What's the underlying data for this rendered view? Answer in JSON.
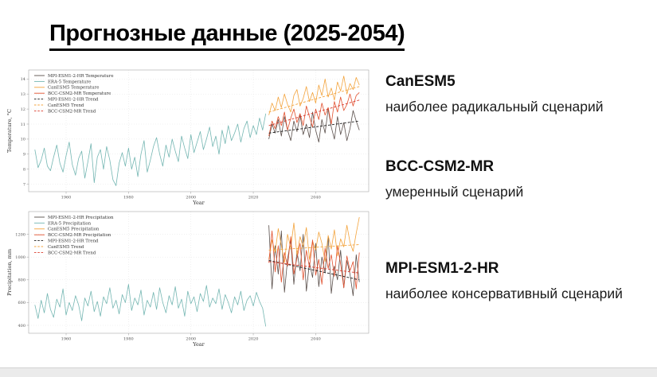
{
  "slide": {
    "title": "Прогнозные данные (2025-2054)",
    "models": [
      {
        "name": "CanESM5",
        "description": "наиболее радикальный сценарий"
      },
      {
        "name": "BCC-CSM2-MR",
        "description": "умеренный сценарий"
      },
      {
        "name": "MPI-ESM1-2-HR",
        "description": "наиболее консервативный сценарий"
      }
    ]
  },
  "colors": {
    "era5": "#74b6b2",
    "canesm5": "#f3a33c",
    "bcc_csm2_mr": "#e2512f",
    "mpi_esm1_2_hr": "#5a4f4b",
    "mpi_trend": "#1a1a1a",
    "canesm5_trend": "#f3a33c",
    "bcc_trend": "#d93a2b",
    "grid": "#e3e3e3",
    "frame": "#a8a8a8",
    "tick_text": "#555555"
  },
  "chart_data": [
    {
      "type": "line",
      "title": "",
      "xlabel": "Year",
      "ylabel": "Temperature, °C",
      "xlim": [
        1948,
        2057
      ],
      "ylim": [
        6.5,
        14.6
      ],
      "xticks": [
        1960,
        1980,
        2000,
        2020,
        2040
      ],
      "yticks": [
        7,
        8,
        9,
        10,
        11,
        12,
        13,
        14
      ],
      "grid": true,
      "legend_position": "upper-left",
      "series": [
        {
          "name": "MPI-ESM1-2-HR Temperature",
          "color": "#5a4f4b",
          "style": "solid",
          "x_start": 2025,
          "values": [
            10.0,
            11.0,
            10.4,
            11.3,
            10.2,
            11.5,
            10.6,
            9.9,
            11.2,
            10.5,
            11.6,
            10.3,
            11.0,
            10.1,
            11.8,
            10.6,
            9.8,
            11.3,
            10.4,
            12.0,
            10.8,
            10.0,
            11.5,
            10.3,
            11.1,
            9.9,
            10.7,
            11.9,
            11.2,
            10.6
          ]
        },
        {
          "name": "ERA-5 Temperature",
          "color": "#74b6b2",
          "style": "solid",
          "x_start": 1950,
          "values": [
            9.3,
            8.1,
            8.6,
            9.4,
            8.2,
            7.9,
            8.8,
            9.6,
            8.4,
            7.8,
            8.9,
            9.8,
            8.3,
            7.6,
            8.7,
            9.2,
            7.4,
            8.5,
            9.7,
            7.1,
            8.8,
            9.3,
            8.0,
            9.5,
            8.6,
            7.3,
            6.9,
            8.4,
            9.1,
            8.2,
            9.4,
            8.0,
            8.8,
            7.5,
            9.0,
            9.9,
            7.8,
            8.6,
            9.5,
            10.1,
            9.0,
            8.2,
            9.6,
            8.8,
            10.0,
            9.2,
            8.5,
            10.2,
            9.4,
            8.7,
            10.3,
            9.1,
            9.8,
            10.5,
            9.3,
            10.0,
            10.8,
            9.5,
            10.2,
            9.0,
            10.6,
            9.7,
            10.9,
            9.9,
            10.4,
            11.0,
            9.8,
            10.7,
            11.2,
            10.1,
            10.9,
            10.3,
            11.4,
            10.6,
            11.7
          ]
        },
        {
          "name": "CanESM5 Temperature",
          "color": "#f3a33c",
          "style": "solid",
          "x_start": 2025,
          "values": [
            11.6,
            12.4,
            11.9,
            12.8,
            12.1,
            13.0,
            12.3,
            11.8,
            12.9,
            13.3,
            12.2,
            12.7,
            13.5,
            12.5,
            13.1,
            12.4,
            13.6,
            12.9,
            14.0,
            12.8,
            13.4,
            12.6,
            13.8,
            13.2,
            14.2,
            13.0,
            13.7,
            13.3,
            14.1,
            13.6
          ]
        },
        {
          "name": "BCC-CSM2-MR Temperature",
          "color": "#e2512f",
          "style": "solid",
          "x_start": 2025,
          "values": [
            10.2,
            11.2,
            10.7,
            11.5,
            10.9,
            11.8,
            10.6,
            11.4,
            12.0,
            11.1,
            11.7,
            10.9,
            12.2,
            11.5,
            10.8,
            12.0,
            11.3,
            12.4,
            11.6,
            12.1,
            11.0,
            12.5,
            11.8,
            12.8,
            11.9,
            12.3,
            13.0,
            12.2,
            12.9,
            13.1
          ]
        },
        {
          "name": "MPI-ESM1-2-HR Trend",
          "color": "#1a1a1a",
          "style": "dashed",
          "x_start": 2025,
          "trend": [
            10.4,
            11.2
          ]
        },
        {
          "name": "CanESM5 Trend",
          "color": "#f3a33c",
          "style": "dashed",
          "x_start": 2025,
          "trend": [
            11.8,
            13.5
          ]
        },
        {
          "name": "BCC-CSM2-MR Trend",
          "color": "#d93a2b",
          "style": "dashed",
          "x_start": 2025,
          "trend": [
            10.9,
            12.6
          ]
        }
      ]
    },
    {
      "type": "line",
      "title": "",
      "xlabel": "Year",
      "ylabel": "Precipitation, mm",
      "xlim": [
        1948,
        2057
      ],
      "ylim": [
        330,
        1400
      ],
      "xticks": [
        1960,
        1980,
        2000,
        2020,
        2040
      ],
      "yticks": [
        400,
        600,
        800,
        1000,
        1200
      ],
      "grid": true,
      "legend_position": "upper-left",
      "series": [
        {
          "name": "MPI-ESM1-2-HR Precipitation",
          "color": "#5a4f4b",
          "style": "solid",
          "x_start": 2025,
          "values": [
            1280,
            720,
            1100,
            850,
            1230,
            690,
            980,
            1150,
            760,
            1050,
            880,
            1200,
            700,
            950,
            820,
            1120,
            740,
            1000,
            860,
            1180,
            680,
            920,
            800,
            1060,
            730,
            970,
            850,
            660,
            1020,
            780
          ]
        },
        {
          "name": "ERA-5 Precipitation",
          "color": "#74b6b2",
          "style": "solid",
          "x_start": 1950,
          "values": [
            580,
            460,
            620,
            510,
            680,
            540,
            470,
            630,
            560,
            720,
            490,
            600,
            530,
            660,
            580,
            440,
            640,
            570,
            700,
            520,
            610,
            480,
            650,
            590,
            730,
            550,
            620,
            500,
            670,
            600,
            760,
            530,
            640,
            580,
            710,
            490,
            620,
            560,
            690,
            540,
            730,
            600,
            510,
            660,
            580,
            740,
            550,
            630,
            480,
            700,
            590,
            650,
            520,
            680,
            610,
            750,
            560,
            640,
            590,
            720,
            540,
            670,
            600,
            510,
            650,
            580,
            700,
            530,
            620,
            660,
            570,
            690,
            610,
            550,
            390
          ]
        },
        {
          "name": "CanESM5 Precipitation",
          "color": "#f3a33c",
          "style": "solid",
          "x_start": 2025,
          "values": [
            980,
            1150,
            1040,
            1250,
            1100,
            950,
            1200,
            1080,
            1300,
            1020,
            1180,
            1090,
            1260,
            980,
            1140,
            1060,
            1220,
            1120,
            960,
            1190,
            1070,
            1240,
            1010,
            1160,
            1090,
            1280,
            1130,
            1050,
            1210,
            1350
          ]
        },
        {
          "name": "BCC-CSM2-MR Precipitation",
          "color": "#e2512f",
          "style": "solid",
          "x_start": 2025,
          "values": [
            950,
            1230,
            870,
            1100,
            780,
            1040,
            920,
            1180,
            850,
            990,
            1120,
            800,
            1060,
            910,
            1150,
            840,
            980,
            760,
            1080,
            900,
            1020,
            830,
            1100,
            940,
            730,
            1010,
            880,
            960,
            720,
            1040
          ]
        },
        {
          "name": "MPI-ESM1-2-HR Trend",
          "color": "#1a1a1a",
          "style": "dashed",
          "x_start": 2025,
          "trend": [
            970,
            800
          ]
        },
        {
          "name": "CanESM5 Trend",
          "color": "#f3a33c",
          "style": "dashed",
          "x_start": 2025,
          "trend": [
            1060,
            1110
          ]
        },
        {
          "name": "BCC-CSM2-MR Trend",
          "color": "#d93a2b",
          "style": "dashed",
          "x_start": 2025,
          "trend": [
            960,
            860
          ]
        }
      ]
    }
  ]
}
